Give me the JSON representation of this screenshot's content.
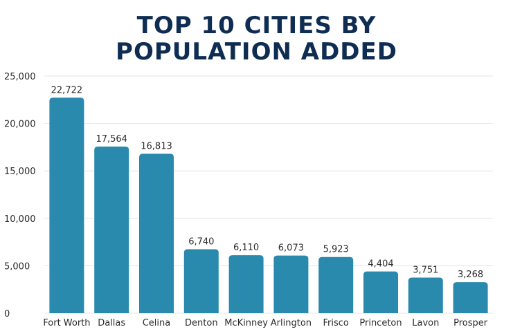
{
  "chart_data": {
    "type": "bar",
    "title_lines": [
      "TOP 10 CITIES BY",
      "POPULATION ADDED"
    ],
    "categories": [
      "Fort Worth",
      "Dallas",
      "Celina",
      "Denton",
      "McKinney",
      "Arlington",
      "Frisco",
      "Princeton",
      "Lavon",
      "Prosper"
    ],
    "values": [
      22722,
      17564,
      16813,
      6740,
      6110,
      6073,
      5923,
      4404,
      3751,
      3268
    ],
    "data_labels": [
      "22,722",
      "17,564",
      "16,813",
      "6,740",
      "6,110",
      "6,073",
      "5,923",
      "4,404",
      "3,751",
      "3,268"
    ],
    "y_ticks": [
      0,
      5000,
      10000,
      15000,
      20000,
      25000
    ],
    "y_tick_labels": [
      "0",
      "5,000",
      "10,000",
      "15,000",
      "20,000",
      "25,000"
    ],
    "ylim": [
      0,
      25000
    ],
    "grid": true,
    "bar_color": "#2a8aae",
    "title_color": "#0f2d52",
    "grid_color": "#e4e4e4"
  }
}
